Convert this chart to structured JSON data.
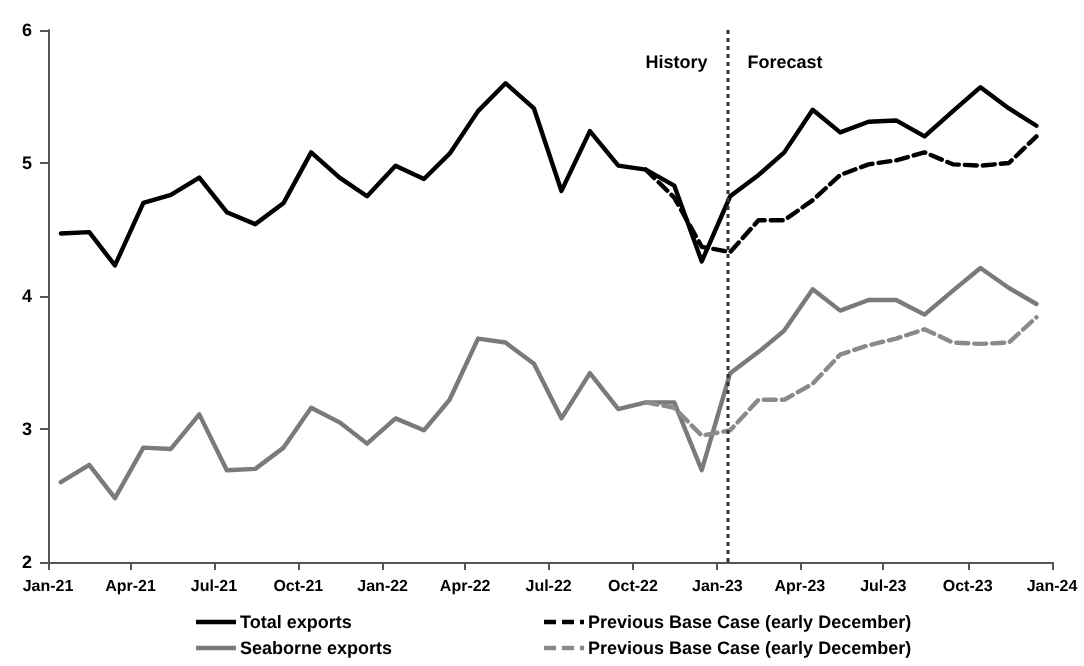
{
  "chart_data": {
    "type": "line",
    "x": [
      "2021-01-15",
      "2021-02-15",
      "2021-03-15",
      "2021-04-15",
      "2021-05-15",
      "2021-06-15",
      "2021-07-15",
      "2021-08-15",
      "2021-09-15",
      "2021-10-15",
      "2021-11-15",
      "2021-12-15",
      "2022-01-15",
      "2022-02-15",
      "2022-03-15",
      "2022-04-15",
      "2022-05-15",
      "2022-06-15",
      "2022-07-15",
      "2022-08-15",
      "2022-09-15",
      "2022-10-15",
      "2022-11-15",
      "2022-12-15",
      "2023-01-15",
      "2023-02-15",
      "2023-03-15",
      "2023-04-15",
      "2023-05-15",
      "2023-06-15",
      "2023-07-15",
      "2023-08-15",
      "2023-09-15",
      "2023-10-15",
      "2023-11-15",
      "2023-12-15"
    ],
    "series": [
      {
        "name": "Total exports",
        "color": "#000000",
        "line_style": "solid",
        "values": [
          4.47,
          4.48,
          4.23,
          4.7,
          4.76,
          4.89,
          4.63,
          4.54,
          4.7,
          5.08,
          4.89,
          4.75,
          4.98,
          4.88,
          5.07,
          5.39,
          5.6,
          5.41,
          4.79,
          5.24,
          4.98,
          4.95,
          4.83,
          4.26,
          4.75,
          4.91,
          5.08,
          5.4,
          5.23,
          5.31,
          5.32,
          5.2,
          5.39,
          5.57,
          5.41,
          5.28
        ]
      },
      {
        "name": "Seaborne exports",
        "color": "#7a7a7a",
        "line_style": "solid",
        "values": [
          2.6,
          2.73,
          2.48,
          2.86,
          2.85,
          3.11,
          2.69,
          2.7,
          2.86,
          3.16,
          3.05,
          2.89,
          3.08,
          2.99,
          3.22,
          3.68,
          3.65,
          3.49,
          3.08,
          3.42,
          3.15,
          3.2,
          3.2,
          2.69,
          3.42,
          3.58,
          3.74,
          4.05,
          3.89,
          3.97,
          3.97,
          3.86,
          4.04,
          4.21,
          4.06,
          3.94
        ]
      },
      {
        "name": "Previous Base Case (early December)",
        "color": "#000000",
        "line_style": "dashed",
        "values": [
          null,
          null,
          null,
          null,
          null,
          null,
          null,
          null,
          null,
          null,
          null,
          null,
          null,
          null,
          null,
          null,
          null,
          null,
          null,
          null,
          null,
          4.95,
          4.74,
          4.37,
          4.33,
          4.57,
          4.57,
          4.72,
          4.91,
          4.99,
          5.02,
          5.08,
          4.99,
          4.98,
          5.0,
          5.2
        ]
      },
      {
        "name": "Previous Base Case (early December)",
        "color": "#8a8a8a",
        "line_style": "dashed",
        "values": [
          null,
          null,
          null,
          null,
          null,
          null,
          null,
          null,
          null,
          null,
          null,
          null,
          null,
          null,
          null,
          null,
          null,
          null,
          null,
          null,
          null,
          3.2,
          3.16,
          2.95,
          2.99,
          3.22,
          3.22,
          3.34,
          3.56,
          3.63,
          3.68,
          3.75,
          3.65,
          3.64,
          3.65,
          3.84
        ]
      }
    ],
    "xlim": [
      "2021-01-01",
      "2024-01-01"
    ],
    "xticks": [
      {
        "value": "2021-01-01",
        "label": "Jan-21"
      },
      {
        "value": "2021-04-01",
        "label": "Apr-21"
      },
      {
        "value": "2021-07-01",
        "label": "Jul-21"
      },
      {
        "value": "2021-10-01",
        "label": "Oct-21"
      },
      {
        "value": "2022-01-01",
        "label": "Jan-22"
      },
      {
        "value": "2022-04-01",
        "label": "Apr-22"
      },
      {
        "value": "2022-07-01",
        "label": "Jul-22"
      },
      {
        "value": "2022-10-01",
        "label": "Oct-22"
      },
      {
        "value": "2023-01-01",
        "label": "Jan-23"
      },
      {
        "value": "2023-04-01",
        "label": "Apr-23"
      },
      {
        "value": "2023-07-01",
        "label": "Jul-23"
      },
      {
        "value": "2023-10-01",
        "label": "Oct-23"
      },
      {
        "value": "2024-01-01",
        "label": "Jan-24"
      }
    ],
    "ylim": [
      2,
      6
    ],
    "yticks": [
      2,
      3,
      4,
      5,
      6
    ],
    "ref_lines": [
      {
        "axis": "x",
        "value": "2023-01-12",
        "color": "#333333",
        "line_style": "dotted"
      }
    ],
    "annotations": [
      "History",
      "Forecast"
    ],
    "grid": false,
    "legend": "bottom",
    "marker": "none"
  }
}
